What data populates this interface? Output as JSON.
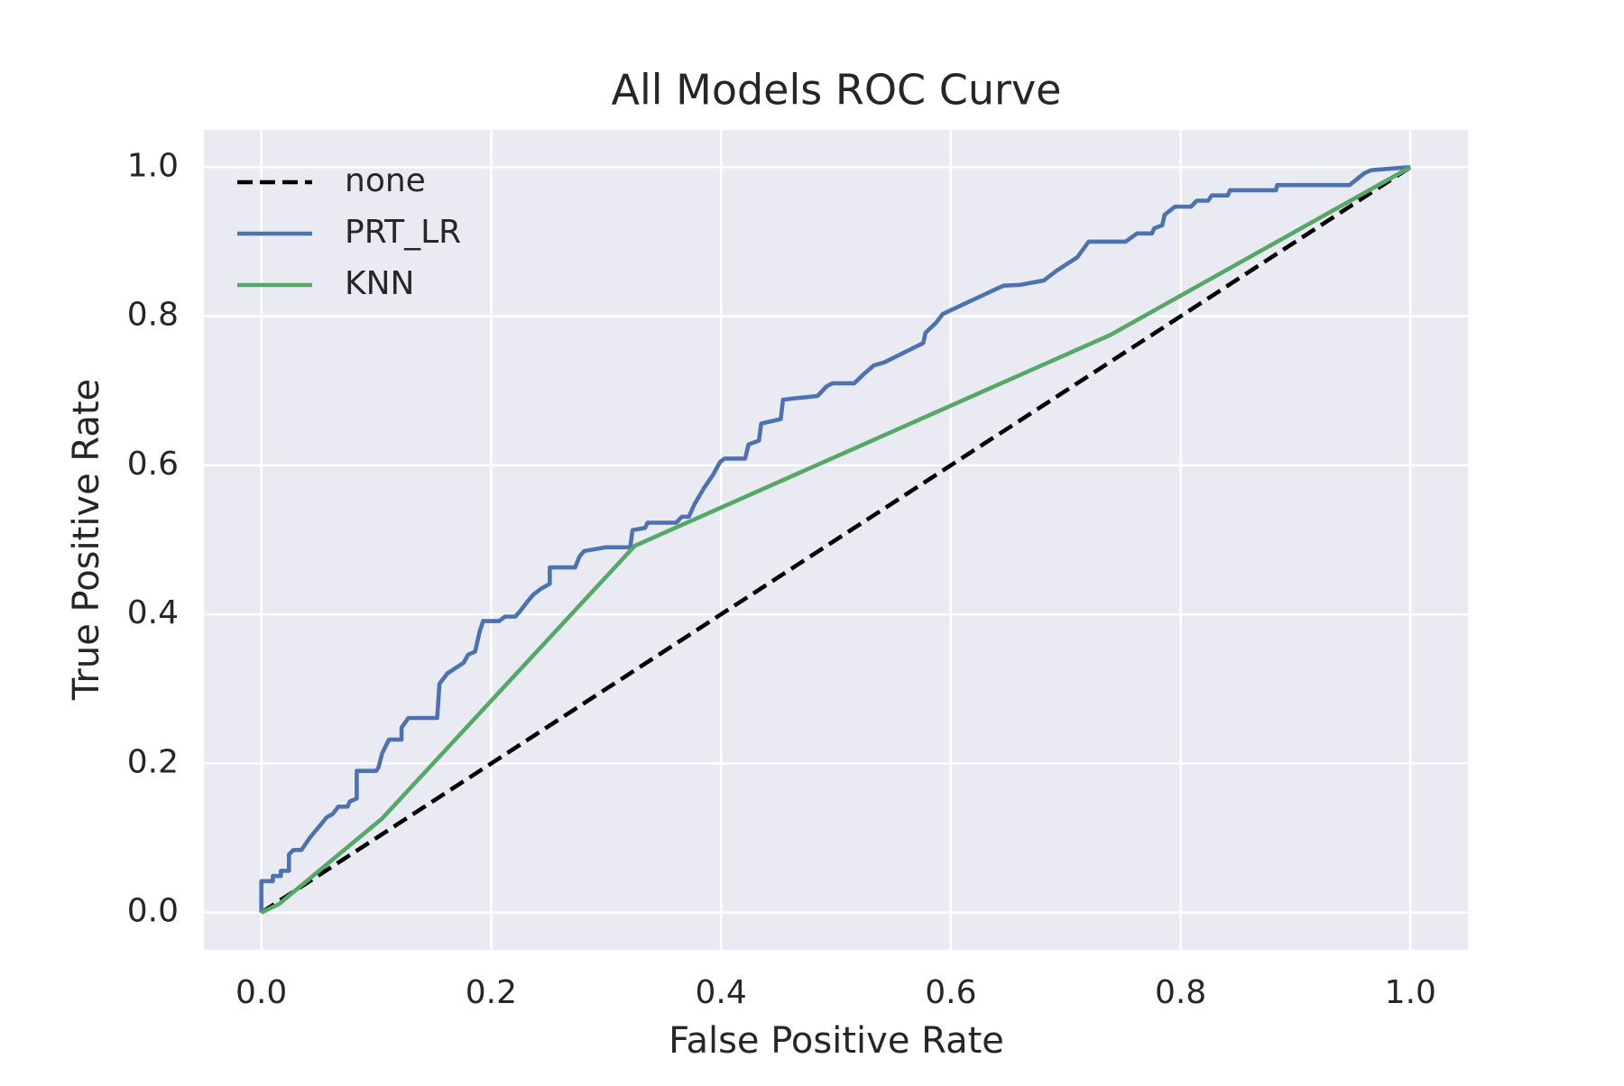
{
  "chart_data": {
    "type": "line",
    "title": "All Models ROC Curve",
    "x_label": "False Positive Rate",
    "y_label": "True Positive Rate",
    "xlim": [
      -0.05,
      1.05
    ],
    "ylim": [
      -0.05,
      1.05
    ],
    "xticks": [
      {
        "value": 0,
        "label": "0.0"
      },
      0.2,
      0.4,
      0.6,
      0.8,
      {
        "value": 1,
        "label": "1.0"
      }
    ],
    "yticks": [
      {
        "value": 0,
        "label": "0.0"
      },
      0.2,
      0.4,
      0.6,
      0.8,
      {
        "value": 1,
        "label": "1.0"
      }
    ],
    "grid": true,
    "legend": "upper left",
    "series": [
      {
        "name": "none",
        "color": "#000000",
        "dashed": true,
        "x": [
          0,
          1
        ],
        "values": [
          0,
          1
        ]
      },
      {
        "name": "PRT_LR",
        "color": "#4c72b0",
        "x": [
          0,
          0,
          0.01,
          0.01,
          0.017,
          0.017,
          0.024,
          0.024,
          0.028,
          0.035,
          0.042,
          0.049,
          0.057,
          0.062,
          0.067,
          0.075,
          0.077,
          0.083,
          0.083,
          0.1,
          0.102,
          0.105,
          0.111,
          0.122,
          0.122,
          0.128,
          0.153,
          0.155,
          0.162,
          0.176,
          0.18,
          0.186,
          0.19,
          0.193,
          0.207,
          0.212,
          0.221,
          0.225,
          0.232,
          0.237,
          0.243,
          0.251,
          0.251,
          0.273,
          0.277,
          0.281,
          0.3,
          0.321,
          0.323,
          0.334,
          0.336,
          0.361,
          0.366,
          0.372,
          0.377,
          0.385,
          0.393,
          0.399,
          0.403,
          0.421,
          0.424,
          0.433,
          0.435,
          0.452,
          0.454,
          0.465,
          0.484,
          0.492,
          0.497,
          0.516,
          0.524,
          0.533,
          0.542,
          0.576,
          0.578,
          0.587,
          0.593,
          0.64,
          0.646,
          0.66,
          0.681,
          0.692,
          0.71,
          0.72,
          0.752,
          0.762,
          0.775,
          0.777,
          0.784,
          0.786,
          0.795,
          0.809,
          0.814,
          0.824,
          0.827,
          0.841,
          0.843,
          0.883,
          0.884,
          0.947,
          0.96,
          0.966,
          1
        ],
        "values": [
          0,
          0.042,
          0.042,
          0.049,
          0.049,
          0.056,
          0.056,
          0.078,
          0.084,
          0.084,
          0.1,
          0.113,
          0.128,
          0.132,
          0.142,
          0.142,
          0.149,
          0.153,
          0.19,
          0.19,
          0.195,
          0.213,
          0.232,
          0.232,
          0.248,
          0.261,
          0.261,
          0.307,
          0.321,
          0.335,
          0.346,
          0.35,
          0.377,
          0.391,
          0.391,
          0.397,
          0.397,
          0.404,
          0.418,
          0.427,
          0.434,
          0.441,
          0.463,
          0.463,
          0.478,
          0.485,
          0.49,
          0.49,
          0.513,
          0.516,
          0.523,
          0.523,
          0.531,
          0.531,
          0.548,
          0.569,
          0.587,
          0.604,
          0.609,
          0.609,
          0.628,
          0.633,
          0.656,
          0.662,
          0.688,
          0.69,
          0.693,
          0.706,
          0.71,
          0.71,
          0.722,
          0.734,
          0.738,
          0.764,
          0.778,
          0.791,
          0.803,
          0.837,
          0.841,
          0.842,
          0.848,
          0.861,
          0.879,
          0.9,
          0.9,
          0.911,
          0.911,
          0.918,
          0.922,
          0.936,
          0.947,
          0.947,
          0.955,
          0.955,
          0.962,
          0.962,
          0.969,
          0.969,
          0.976,
          0.976,
          0.992,
          0.996,
          1
        ]
      },
      {
        "name": "KNN",
        "color": "#55a868",
        "x": [
          0,
          0.015,
          0.105,
          0.325,
          0.739,
          1
        ],
        "values": [
          0,
          0.011,
          0.126,
          0.492,
          0.775,
          1
        ]
      }
    ]
  }
}
